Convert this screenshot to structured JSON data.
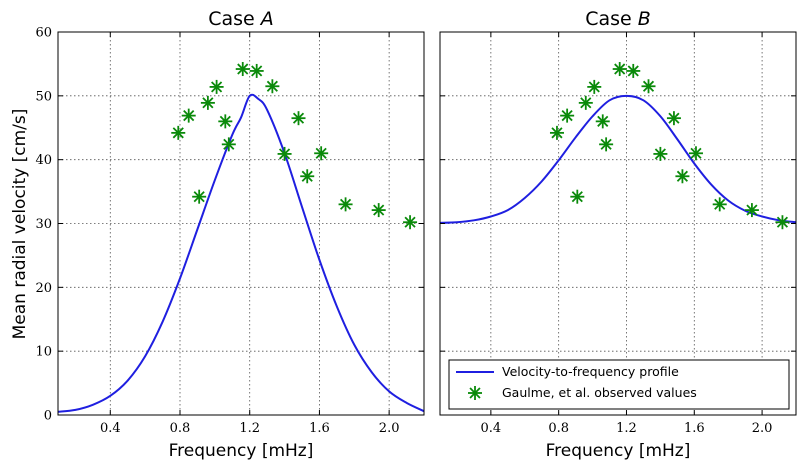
{
  "chart_data": [
    {
      "type": "line",
      "title_prefix": "Case ",
      "title_italic": "A",
      "xlabel": "Frequency [mHz]",
      "ylabel": "Mean radial velocity [cm/s]",
      "xlim": [
        0.1,
        2.2
      ],
      "ylim": [
        0,
        60
      ],
      "xticks": [
        0.4,
        0.8,
        1.2,
        1.6,
        2.0
      ],
      "xtick_labels": [
        "0.4",
        "0.8",
        "1.2",
        "1.6",
        "2.0"
      ],
      "yticks": [
        0,
        10,
        20,
        30,
        40,
        50,
        60
      ],
      "ytick_labels": [
        "0",
        "10",
        "20",
        "30",
        "40",
        "50",
        "60"
      ],
      "grid": true,
      "series": [
        {
          "name": "Velocity-to-frequency profile",
          "kind": "line",
          "color": "#1f1fe0",
          "x": [
            0.1,
            0.2,
            0.3,
            0.4,
            0.5,
            0.6,
            0.7,
            0.8,
            0.9,
            1.0,
            1.1,
            1.15,
            1.2,
            1.25,
            1.3,
            1.4,
            1.5,
            1.6,
            1.7,
            1.8,
            1.9,
            2.0,
            2.1,
            2.2
          ],
          "y": [
            0.5,
            0.8,
            1.6,
            3.0,
            5.4,
            9.2,
            14.6,
            21.4,
            29.1,
            36.8,
            43.9,
            46.6,
            50.0,
            49.5,
            47.8,
            41.0,
            32.6,
            24.3,
            17.0,
            11.0,
            6.7,
            3.7,
            1.9,
            0.6
          ]
        },
        {
          "name": "Gaulme, et al. observed values",
          "kind": "scatter",
          "color": "#0a8a0a",
          "x": [
            0.79,
            0.85,
            0.91,
            0.96,
            1.01,
            1.06,
            1.08,
            1.16,
            1.24,
            1.33,
            1.4,
            1.48,
            1.53,
            1.61,
            1.75,
            1.94,
            2.12
          ],
          "y": [
            44.2,
            46.9,
            34.2,
            48.9,
            51.4,
            46.0,
            42.4,
            54.2,
            53.9,
            51.5,
            40.9,
            46.5,
            37.4,
            41.0,
            33.0,
            32.1,
            30.2
          ]
        }
      ]
    },
    {
      "type": "line",
      "title_prefix": "Case ",
      "title_italic": "B",
      "xlabel": "Frequency [mHz]",
      "ylabel": "",
      "xlim": [
        0.1,
        2.2
      ],
      "ylim": [
        0,
        60
      ],
      "xticks": [
        0.4,
        0.8,
        1.2,
        1.6,
        2.0
      ],
      "xtick_labels": [
        "0.4",
        "0.8",
        "1.2",
        "1.6",
        "2.0"
      ],
      "yticks": [
        0,
        10,
        20,
        30,
        40,
        50,
        60
      ],
      "ytick_labels": [],
      "grid": true,
      "legend": "lower-right",
      "series": [
        {
          "name": "Velocity-to-frequency profile",
          "kind": "line",
          "color": "#1f1fe0",
          "x": [
            0.1,
            0.2,
            0.3,
            0.4,
            0.5,
            0.6,
            0.7,
            0.8,
            0.9,
            1.0,
            1.1,
            1.2,
            1.3,
            1.4,
            1.5,
            1.6,
            1.7,
            1.8,
            1.9,
            2.0,
            2.1,
            2.2
          ],
          "y": [
            30.1,
            30.2,
            30.5,
            31.1,
            32.1,
            34.0,
            36.6,
            39.9,
            43.5,
            46.8,
            49.3,
            50.0,
            49.3,
            46.8,
            43.2,
            39.4,
            36.1,
            33.6,
            32.0,
            31.1,
            30.5,
            30.2
          ]
        },
        {
          "name": "Gaulme, et al. observed values",
          "kind": "scatter",
          "color": "#0a8a0a",
          "x": [
            0.79,
            0.85,
            0.91,
            0.96,
            1.01,
            1.06,
            1.08,
            1.16,
            1.24,
            1.33,
            1.4,
            1.48,
            1.53,
            1.61,
            1.75,
            1.94,
            2.12
          ],
          "y": [
            44.2,
            46.9,
            34.2,
            48.9,
            51.4,
            46.0,
            42.4,
            54.2,
            53.9,
            51.5,
            40.9,
            46.5,
            37.4,
            41.0,
            33.0,
            32.1,
            30.2
          ]
        }
      ]
    }
  ]
}
